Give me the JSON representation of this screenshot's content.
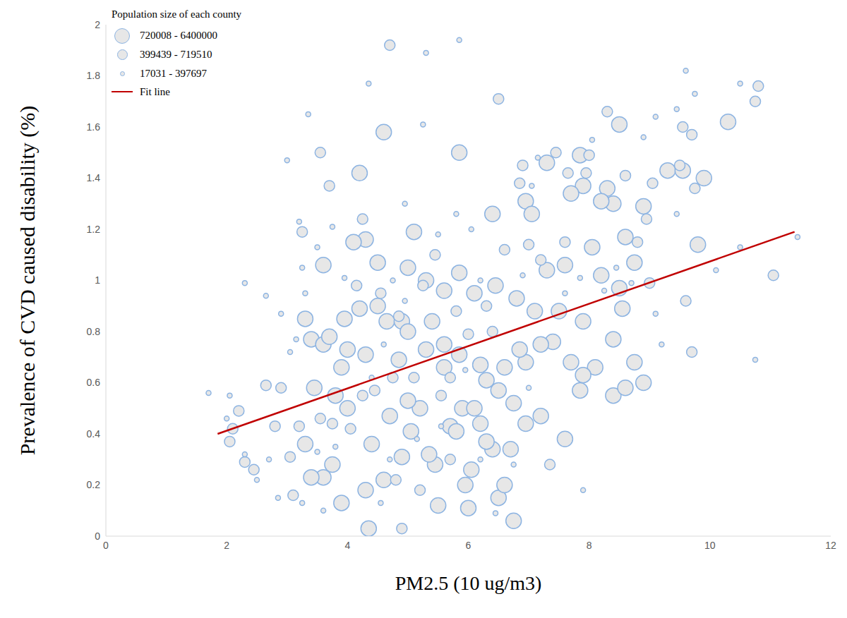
{
  "chart_data": {
    "type": "scatter",
    "y_label": "Prevalence of CVD caused disability (%)",
    "x_label": "PM2.5 (10 ug/m3)",
    "legend_title": "Population size of each county",
    "legend": "top-left",
    "grid": false,
    "xlim": [
      0,
      12
    ],
    "xticks": [
      0,
      2,
      4,
      6,
      8,
      10,
      12
    ],
    "ylim": [
      0,
      2
    ],
    "yticks": [
      0,
      0.2,
      0.4,
      0.6,
      0.8,
      1,
      1.2,
      1.4,
      1.6,
      1.8,
      2
    ],
    "series": [
      {
        "name": "720008 - 6400000",
        "color": "#8db4e2",
        "marker": "circle",
        "x": [
          4.6,
          5.85,
          4.2,
          7.3,
          7.85,
          8.5,
          8.3,
          9.3,
          9.55,
          9.9,
          10.3,
          9.8,
          8.9,
          8.4,
          8.2,
          7.9,
          7.7,
          6.95,
          7.05,
          6.4,
          5.1,
          4.3,
          3.6,
          3.3,
          3.4,
          3.6,
          4.1,
          4.5,
          5.0,
          5.3,
          5.6,
          5.85,
          6.1,
          6.45,
          6.8,
          7.3,
          7.6,
          8.05,
          8.2,
          8.6,
          8.75,
          7.1,
          7.5,
          7.9,
          8.5,
          8.55,
          8.4,
          8.4,
          8.6,
          8.9,
          8.75,
          8.1,
          7.9,
          7.6,
          7.85,
          7.7,
          7.4,
          7.2,
          6.95,
          6.85,
          6.75,
          6.7,
          6.4,
          6.5,
          6.6,
          6.3,
          6.2,
          5.85,
          5.6,
          5.9,
          6.1,
          6.2,
          6.3,
          6.05,
          5.95,
          6.0,
          5.5,
          5.45,
          5.35,
          5.2,
          5.05,
          5.0,
          4.85,
          4.7,
          4.65,
          4.4,
          4.3,
          4.35,
          3.9,
          3.75,
          3.6,
          3.4,
          3.3,
          3.45,
          3.8,
          4.0,
          3.9,
          4.0,
          4.3,
          4.5,
          4.9,
          5.4,
          5.6,
          5.3,
          5.0,
          4.2,
          3.95,
          3.7,
          6.75,
          6.5,
          6.6,
          7.2,
          6.95,
          5.7,
          5.8,
          4.9,
          4.6
        ],
        "y": [
          1.58,
          1.5,
          1.42,
          1.46,
          1.49,
          1.61,
          1.36,
          1.43,
          1.43,
          1.4,
          1.62,
          1.14,
          1.29,
          1.3,
          1.31,
          1.37,
          1.34,
          1.31,
          1.26,
          1.26,
          1.19,
          1.16,
          1.06,
          0.85,
          0.77,
          0.75,
          1.15,
          1.07,
          1.05,
          1.0,
          0.96,
          1.03,
          0.95,
          0.98,
          0.93,
          1.04,
          1.06,
          1.13,
          1.02,
          1.17,
          1.07,
          0.88,
          0.88,
          0.84,
          0.97,
          0.89,
          0.77,
          0.55,
          0.58,
          0.6,
          0.68,
          0.66,
          0.63,
          0.38,
          0.57,
          0.68,
          0.76,
          0.75,
          0.68,
          0.73,
          0.52,
          0.34,
          0.34,
          0.57,
          0.66,
          0.61,
          0.67,
          0.71,
          0.66,
          0.5,
          0.5,
          0.44,
          0.37,
          0.26,
          0.2,
          0.11,
          0.12,
          0.28,
          0.32,
          0.5,
          0.41,
          0.53,
          0.69,
          0.47,
          0.84,
          0.36,
          0.18,
          0.03,
          0.13,
          0.28,
          0.23,
          0.23,
          0.36,
          0.58,
          0.55,
          0.5,
          0.66,
          0.73,
          0.71,
          0.9,
          0.84,
          0.84,
          0.75,
          0.73,
          0.8,
          0.89,
          0.85,
          0.78,
          0.06,
          0.15,
          0.2,
          0.47,
          0.44,
          0.43,
          0.41,
          0.31,
          0.22
        ]
      },
      {
        "name": "399439 - 719510",
        "color": "#8db4e2",
        "marker": "circle",
        "x": [
          3.25,
          3.55,
          3.7,
          4.25,
          4.15,
          4.55,
          4.85,
          5.25,
          5.45,
          5.8,
          6.3,
          6.9,
          7.45,
          7.65,
          7.95,
          8.3,
          8.6,
          8.95,
          8.8,
          9.5,
          9.55,
          9.7,
          9.75,
          10.8,
          10.75,
          11.05,
          9.6,
          9.7,
          9.0,
          8.0,
          7.6,
          7.2,
          6.6,
          6.4,
          6.0,
          5.7,
          5.55,
          5.1,
          4.75,
          4.45,
          4.25,
          4.05,
          3.75,
          3.55,
          3.2,
          3.1,
          2.2,
          2.1,
          2.05,
          2.3,
          2.45,
          2.65,
          2.9,
          2.8,
          3.05,
          4.7,
          4.9,
          4.8,
          5.2,
          5.7,
          6.5,
          6.85,
          7.0,
          7.35,
          9.05
        ],
        "y": [
          1.19,
          1.5,
          1.37,
          1.24,
          0.98,
          0.95,
          0.86,
          0.98,
          1.1,
          0.88,
          0.9,
          1.45,
          1.5,
          1.42,
          1.42,
          1.66,
          1.41,
          1.24,
          1.15,
          1.45,
          1.6,
          1.57,
          1.36,
          1.76,
          1.7,
          1.02,
          0.92,
          0.72,
          0.99,
          1.49,
          1.15,
          1.08,
          1.12,
          0.8,
          0.79,
          0.62,
          0.55,
          0.62,
          0.62,
          0.57,
          0.55,
          0.42,
          0.44,
          0.46,
          0.43,
          0.16,
          0.49,
          0.42,
          0.37,
          0.29,
          0.26,
          0.59,
          0.58,
          0.43,
          0.31,
          1.92,
          0.03,
          0.22,
          0.18,
          0.3,
          1.71,
          1.38,
          1.14,
          0.28,
          1.38
        ]
      },
      {
        "name": "17031 - 397697",
        "color": "#8db4e2",
        "marker": "circle",
        "x": [
          2.3,
          2.65,
          2.9,
          3.0,
          3.35,
          4.35,
          5.3,
          5.85,
          5.25,
          4.95,
          3.2,
          3.25,
          3.3,
          3.15,
          3.05,
          2.7,
          2.5,
          1.7,
          2.05,
          2.85,
          3.25,
          3.6,
          3.8,
          3.5,
          9.6,
          9.75,
          10.5,
          10.5,
          11.45,
          10.75,
          10.1,
          9.1,
          9.2,
          9.45,
          9.45,
          8.9,
          8.05,
          7.9,
          6.45,
          6.75,
          5.8,
          6.05,
          4.95,
          4.75,
          4.6,
          4.4,
          4.7,
          4.55,
          5.15,
          5.55,
          5.95,
          6.2,
          7.0,
          7.15,
          7.05,
          7.6,
          8.25,
          8.7,
          9.1,
          8.45,
          7.85,
          6.9,
          6.2,
          5.5,
          3.95,
          3.75,
          3.5,
          2.0,
          2.3
        ],
        "y": [
          0.99,
          0.94,
          0.87,
          1.47,
          1.65,
          1.77,
          1.89,
          1.94,
          1.61,
          1.3,
          1.23,
          1.05,
          0.95,
          0.77,
          0.72,
          0.3,
          0.22,
          0.56,
          0.55,
          0.15,
          0.13,
          0.1,
          0.35,
          0.33,
          1.82,
          1.73,
          1.77,
          1.13,
          1.17,
          0.69,
          1.04,
          1.64,
          0.75,
          1.26,
          1.67,
          1.56,
          1.55,
          0.18,
          0.09,
          0.28,
          1.26,
          1.2,
          0.92,
          1.0,
          0.75,
          0.62,
          0.3,
          0.13,
          0.38,
          0.43,
          0.65,
          0.3,
          0.58,
          1.48,
          1.37,
          0.95,
          0.96,
          0.99,
          0.87,
          1.05,
          1.01,
          1.02,
          1.0,
          1.18,
          1.01,
          1.21,
          1.13,
          0.46,
          0.32
        ]
      }
    ],
    "fit_line": {
      "name": "Fit line",
      "color": "#c00000",
      "line_style": "solid",
      "x": [
        1.85,
        11.4
      ],
      "y": [
        0.4,
        1.19
      ]
    }
  }
}
